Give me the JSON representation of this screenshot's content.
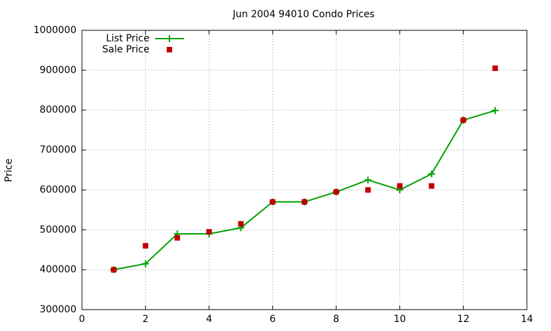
{
  "chart_data": {
    "type": "line",
    "title": "Jun 2004 94010 Condo Prices",
    "y_label": "Price",
    "x": [
      1,
      2,
      3,
      4,
      5,
      6,
      7,
      8,
      9,
      10,
      11,
      12,
      13
    ],
    "series": [
      {
        "name": "List Price",
        "color": "#00a000",
        "style": "linespoints",
        "marker": "plus",
        "values": [
          400000,
          415000,
          490000,
          490000,
          505000,
          570000,
          570000,
          595000,
          625000,
          600000,
          640000,
          775000,
          799000
        ]
      },
      {
        "name": "Sale Price",
        "color": "#c00000",
        "style": "points",
        "marker": "square",
        "values": [
          400000,
          460000,
          480000,
          495000,
          515000,
          570000,
          570000,
          595000,
          600000,
          610000,
          610000,
          775000,
          905000
        ]
      }
    ],
    "xlim": [
      0,
      14
    ],
    "xticks": [
      0,
      2,
      4,
      6,
      8,
      10,
      12,
      14
    ],
    "ylim": [
      300000,
      1000000
    ],
    "yticks": [
      300000,
      400000,
      500000,
      600000,
      700000,
      800000,
      900000,
      1000000
    ],
    "grid": true,
    "legend": "top-left"
  }
}
